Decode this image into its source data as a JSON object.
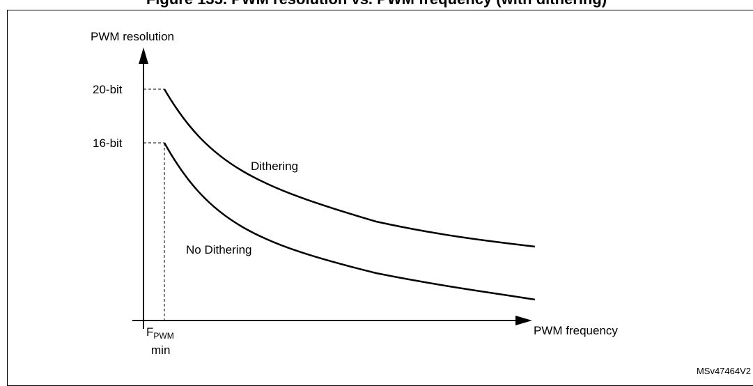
{
  "chart_data": {
    "type": "line",
    "title": "Figure 135. PWM resolution vs. PWM frequency (with dithering)",
    "xlabel": "PWM frequency",
    "ylabel": "PWM resolution",
    "yticks": [
      {
        "label": "20-bit",
        "value": 20
      },
      {
        "label": "16-bit",
        "value": 16
      }
    ],
    "xmark": {
      "main": "F",
      "sub": "PWM",
      "second": "min"
    },
    "series": [
      {
        "name": "Dithering",
        "start_value": 20
      },
      {
        "name": "No Dithering",
        "start_value": 16
      }
    ],
    "grid": false,
    "legend": "none"
  },
  "figure_id": "MSv47464V2"
}
